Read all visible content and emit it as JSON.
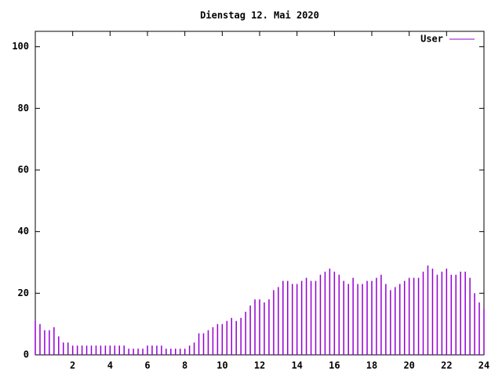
{
  "chart_data": {
    "type": "impulses",
    "title": "Dienstag 12. Mai 2020",
    "x": [
      0,
      0.25,
      0.5,
      0.75,
      1,
      1.25,
      1.5,
      1.75,
      2,
      2.25,
      2.5,
      2.75,
      3,
      3.25,
      3.5,
      3.75,
      4,
      4.25,
      4.5,
      4.75,
      5,
      5.25,
      5.5,
      5.75,
      6,
      6.25,
      6.5,
      6.75,
      7,
      7.25,
      7.5,
      7.75,
      8,
      8.25,
      8.5,
      8.75,
      9,
      9.25,
      9.5,
      9.75,
      10,
      10.25,
      10.5,
      10.75,
      11,
      11.25,
      11.5,
      11.75,
      12,
      12.25,
      12.5,
      12.75,
      13,
      13.25,
      13.5,
      13.75,
      14,
      14.25,
      14.5,
      14.75,
      15,
      15.25,
      15.5,
      15.75,
      16,
      16.25,
      16.5,
      16.75,
      17,
      17.25,
      17.5,
      17.75,
      18,
      18.25,
      18.5,
      18.75,
      19,
      19.25,
      19.5,
      19.75,
      20,
      20.25,
      20.5,
      20.75,
      21,
      21.25,
      21.5,
      21.75,
      22,
      22.25,
      22.5,
      22.75,
      23,
      23.25,
      23.5,
      23.75,
      24
    ],
    "series": [
      {
        "name": "User",
        "color": "#9400d3",
        "values": [
          11,
          10,
          8,
          8,
          9,
          6,
          4,
          4,
          3,
          3,
          3,
          3,
          3,
          3,
          3,
          3,
          3,
          3,
          3,
          3,
          2,
          2,
          2,
          2,
          3,
          3,
          3,
          3,
          2,
          2,
          2,
          2,
          2,
          3,
          4,
          7,
          7,
          8,
          9,
          10,
          10,
          11,
          12,
          11,
          12,
          14,
          16,
          18,
          18,
          17,
          18,
          21,
          22,
          24,
          24,
          23,
          23,
          24,
          25,
          24,
          24,
          26,
          27,
          28,
          27,
          26,
          24,
          23,
          25,
          23,
          23,
          24,
          24,
          25,
          26,
          23,
          21,
          22,
          23,
          24,
          25,
          25,
          25,
          27,
          29,
          28,
          26,
          27,
          28,
          26,
          26,
          27,
          27,
          25,
          20,
          17,
          15
        ]
      }
    ],
    "xlim": [
      0,
      24
    ],
    "xticks": [
      2,
      4,
      6,
      8,
      10,
      12,
      14,
      16,
      18,
      20,
      22,
      24
    ],
    "ylim": [
      0,
      105
    ],
    "yticks": [
      0,
      20,
      40,
      60,
      80,
      100
    ],
    "legend": "top-right"
  }
}
